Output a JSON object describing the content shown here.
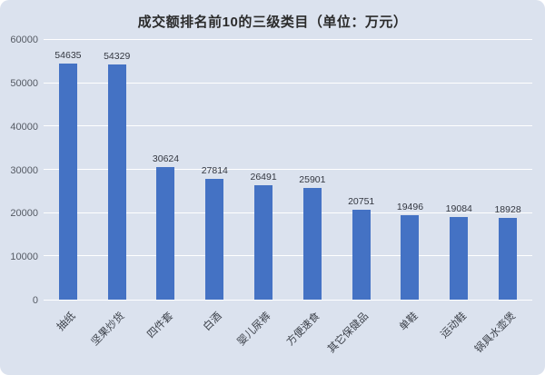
{
  "chart_data": {
    "type": "bar",
    "title": "成交额排名前10的三级类目（单位：万元）",
    "categories": [
      "抽纸",
      "坚果炒货",
      "四件套",
      "白酒",
      "婴儿尿裤",
      "方便速食",
      "其它保健品",
      "单鞋",
      "运动鞋",
      "锅具水壶煲"
    ],
    "values": [
      54635,
      54329,
      30624,
      27814,
      26491,
      25901,
      20751,
      19496,
      19084,
      18928
    ],
    "xlabel": "",
    "ylabel": "",
    "ylim": [
      0,
      60000
    ],
    "yticks": [
      0,
      10000,
      20000,
      30000,
      40000,
      50000,
      60000
    ],
    "grid": true,
    "legend_position": "none",
    "bar_color": "#4472c4",
    "background_color": "#dbe2ee",
    "gridline_color": "#ffffff"
  }
}
